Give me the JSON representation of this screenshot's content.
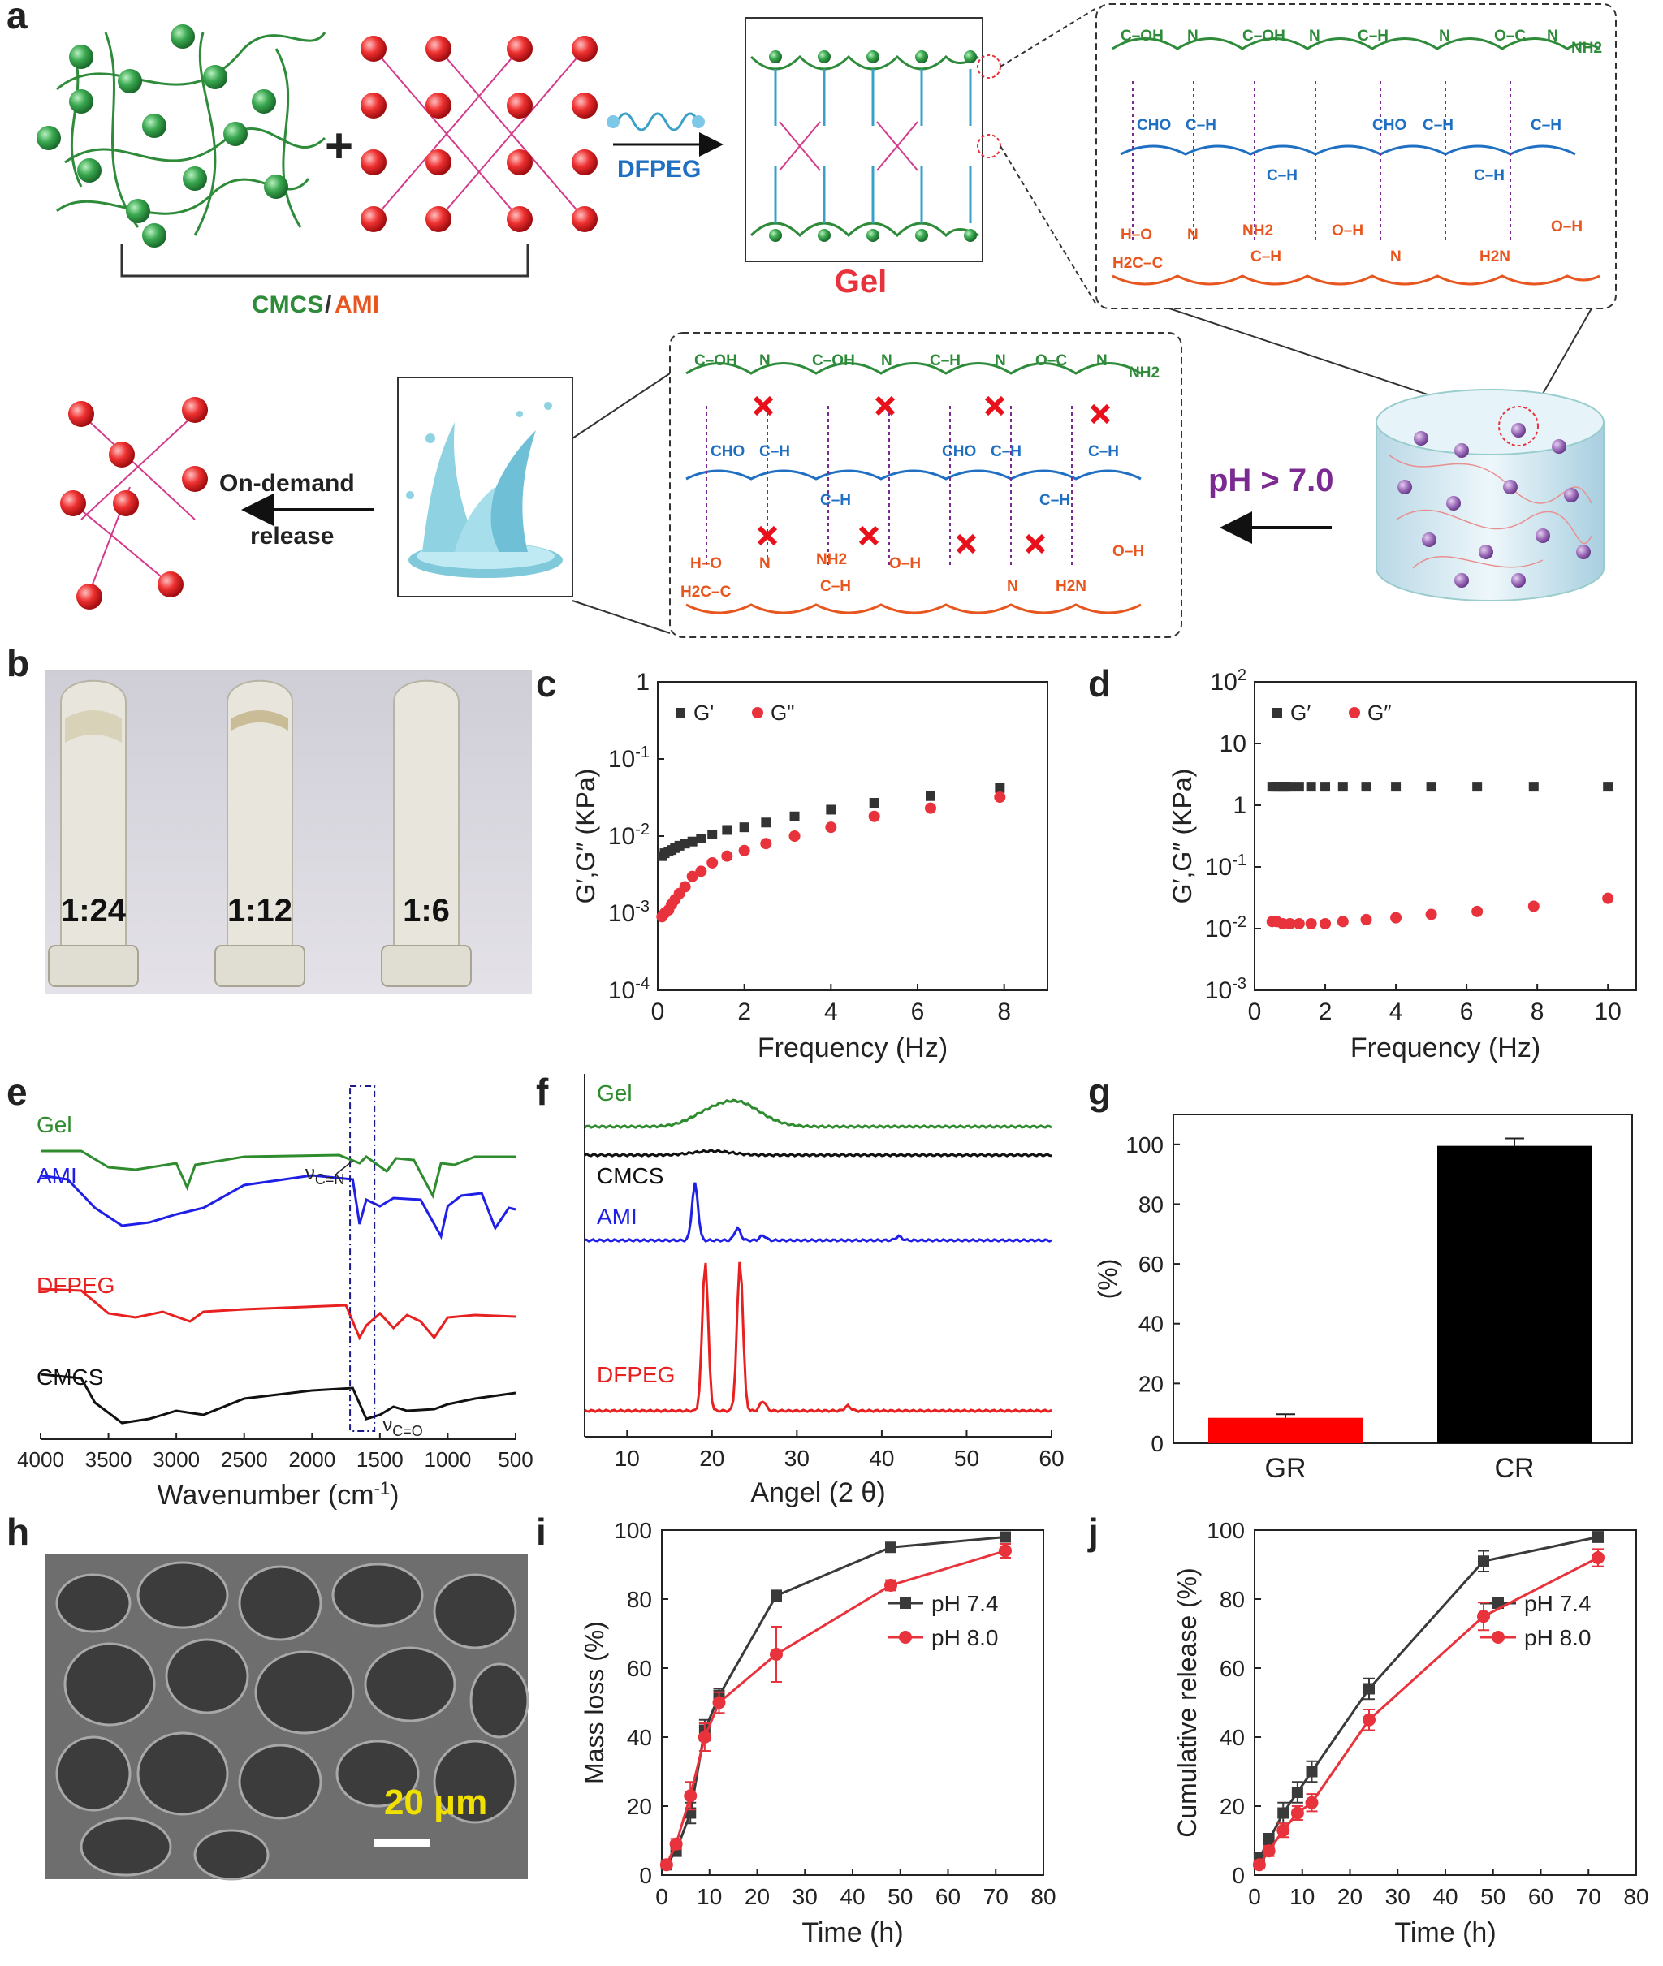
{
  "panel_letters": [
    "a",
    "b",
    "c",
    "d",
    "e",
    "f",
    "g",
    "h",
    "i",
    "j"
  ],
  "schematic": {
    "cmcs_label": "CMCS",
    "slash": "/",
    "ami_label": "AMI",
    "plus": "+",
    "crosslinker": "DFPEG",
    "gel_label": "Gel",
    "ph_trigger": "pH > 7.0",
    "release_line1": "On-demand",
    "release_line2": "release",
    "chem_top": [
      "C–OH",
      "N",
      "C–OH",
      "N",
      "C–H",
      "N",
      "O–C",
      "N",
      "NH2"
    ],
    "chem_mid": [
      "CHO",
      "C–H",
      "C–H",
      "CHO",
      "C–H",
      "C–H",
      "C–H"
    ],
    "chem_bot": [
      "H–O",
      "H2C–C",
      "N",
      "NH2",
      "C–H",
      "O–H",
      "N",
      "H2N",
      "O–H"
    ],
    "colors": {
      "green": "#2e8b3a",
      "red": "#e8323c",
      "blue": "#1f6fc2",
      "orange": "#e8561f",
      "purple": "#7a2a91"
    }
  },
  "photo_b": {
    "labels": [
      "1:24",
      "1:12",
      "1:6"
    ]
  },
  "photo_h": {
    "scalebar": "20 μm"
  },
  "chart_data": [
    {
      "id": "c",
      "type": "scatter",
      "xlabel": "Frequency (Hz)",
      "ylabel": "G′,G″ (KPa)",
      "xlim": [
        0,
        9
      ],
      "ylim_log10": [
        -4,
        0
      ],
      "xticks": [
        0,
        2,
        4,
        6,
        8
      ],
      "yticks": [
        "10-4",
        "10-3",
        "10-2",
        "10-1",
        "1"
      ],
      "series": [
        {
          "name": "G'",
          "color": "#333333",
          "marker": "square",
          "x": [
            0.1,
            0.16,
            0.25,
            0.32,
            0.4,
            0.5,
            0.63,
            0.8,
            1.0,
            1.26,
            1.6,
            2.0,
            2.5,
            3.16,
            4.0,
            5.0,
            6.3,
            7.9
          ],
          "y": [
            0.0055,
            0.006,
            0.0063,
            0.0066,
            0.007,
            0.0075,
            0.008,
            0.0085,
            0.0093,
            0.0105,
            0.012,
            0.013,
            0.015,
            0.018,
            0.022,
            0.027,
            0.033,
            0.042
          ]
        },
        {
          "name": "G\"",
          "color": "#e8323c",
          "marker": "circle",
          "x": [
            0.1,
            0.16,
            0.25,
            0.32,
            0.4,
            0.5,
            0.63,
            0.8,
            1.0,
            1.26,
            1.6,
            2.0,
            2.5,
            3.16,
            4.0,
            5.0,
            6.3,
            7.9
          ],
          "y": [
            0.0009,
            0.001,
            0.0011,
            0.0013,
            0.0015,
            0.0018,
            0.0022,
            0.003,
            0.0035,
            0.0045,
            0.0055,
            0.0065,
            0.008,
            0.01,
            0.013,
            0.018,
            0.023,
            0.032
          ]
        }
      ]
    },
    {
      "id": "d",
      "type": "scatter",
      "xlabel": "Frequency (Hz)",
      "ylabel": "G′,G″ (KPa)",
      "xlim": [
        0,
        10.8
      ],
      "ylim_log10": [
        -3,
        2
      ],
      "xticks": [
        0,
        2,
        4,
        6,
        8,
        10
      ],
      "yticks": [
        "10-3",
        "10-2",
        "10-1",
        "1",
        "10",
        "102"
      ],
      "series": [
        {
          "name": "G′",
          "color": "#333333",
          "marker": "square",
          "x": [
            0.5,
            0.6,
            0.7,
            0.8,
            0.9,
            1.0,
            1.26,
            1.6,
            2.0,
            2.5,
            3.16,
            4.0,
            5.0,
            6.3,
            7.9,
            10.0
          ],
          "y": [
            2.0,
            2.0,
            2.0,
            2.0,
            2.0,
            2.0,
            2.0,
            2.0,
            2.0,
            2.0,
            2.0,
            2.0,
            2.0,
            2.0,
            2.0,
            2.0
          ]
        },
        {
          "name": "G″",
          "color": "#e8323c",
          "marker": "circle",
          "x": [
            0.5,
            0.63,
            0.8,
            1.0,
            1.26,
            1.6,
            2.0,
            2.5,
            3.16,
            4.0,
            5.0,
            6.3,
            7.9,
            10.0
          ],
          "y": [
            0.013,
            0.013,
            0.012,
            0.012,
            0.012,
            0.012,
            0.012,
            0.013,
            0.014,
            0.015,
            0.017,
            0.019,
            0.023,
            0.031
          ]
        }
      ]
    },
    {
      "id": "e",
      "type": "line",
      "xlabel": "Wavenumber (cm-1)",
      "xticks": [
        4000,
        3500,
        3000,
        2500,
        2000,
        1500,
        1000,
        500
      ],
      "series_labels": [
        "Gel",
        "AMI",
        "DFPEG",
        "CMCS"
      ],
      "series_colors": [
        "#2e8b2e",
        "#1f1fe6",
        "#e82020",
        "#111111"
      ],
      "annotations": [
        "νC=N",
        "νC=O"
      ]
    },
    {
      "id": "f",
      "type": "line",
      "xlabel": "Angel (2 θ)",
      "xticks": [
        10,
        20,
        30,
        40,
        50,
        60
      ],
      "series_labels": [
        "Gel",
        "CMCS",
        "AMI",
        "DFPEG"
      ],
      "series_colors": [
        "#2e8b2e",
        "#111111",
        "#1f1fe6",
        "#e82020"
      ]
    },
    {
      "id": "g",
      "type": "bar",
      "ylabel": "(%)",
      "ylim": [
        0,
        110
      ],
      "yticks": [
        0,
        20,
        40,
        60,
        80,
        100
      ],
      "categories": [
        "GR",
        "CR"
      ],
      "values": [
        8.5,
        99.5
      ],
      "errors": [
        1.2,
        2.5
      ],
      "colors": [
        "#ff0000",
        "#000000"
      ]
    },
    {
      "id": "i",
      "type": "line",
      "xlabel": "Time (h)",
      "ylabel": "Mass loss (%)",
      "xlim": [
        0,
        80
      ],
      "ylim": [
        0,
        100
      ],
      "xticks": [
        0,
        10,
        20,
        30,
        40,
        50,
        60,
        70,
        80
      ],
      "yticks": [
        0,
        20,
        40,
        60,
        80,
        100
      ],
      "series": [
        {
          "name": "pH 7.4",
          "color": "#3a3a3a",
          "marker": "square",
          "x": [
            1,
            3,
            6,
            9,
            12,
            24,
            48,
            72
          ],
          "y": [
            3,
            7,
            18,
            42,
            52,
            81,
            95,
            98
          ],
          "err": [
            1,
            1.5,
            3,
            3,
            2,
            1.5,
            1,
            1
          ]
        },
        {
          "name": "pH 8.0",
          "color": "#e8323c",
          "marker": "circle",
          "x": [
            1,
            3,
            6,
            9,
            12,
            24,
            48,
            72
          ],
          "y": [
            3,
            9,
            23,
            40,
            50,
            64,
            84,
            94
          ],
          "err": [
            1,
            1.5,
            4,
            4,
            3,
            8,
            1.5,
            2
          ]
        }
      ]
    },
    {
      "id": "j",
      "type": "line",
      "xlabel": "Time (h)",
      "ylabel": "Cumulative release (%)",
      "xlim": [
        0,
        80
      ],
      "ylim": [
        0,
        100
      ],
      "xticks": [
        0,
        10,
        20,
        30,
        40,
        50,
        60,
        70,
        80
      ],
      "yticks": [
        0,
        20,
        40,
        60,
        80,
        100
      ],
      "series": [
        {
          "name": "pH 7.4",
          "color": "#3a3a3a",
          "marker": "square",
          "x": [
            1,
            3,
            6,
            9,
            12,
            24,
            48,
            72
          ],
          "y": [
            5,
            10,
            18,
            24,
            30,
            54,
            91,
            98
          ],
          "err": [
            1.5,
            2,
            3,
            3,
            3,
            3,
            3,
            1.5
          ]
        },
        {
          "name": "pH 8.0",
          "color": "#e8323c",
          "marker": "circle",
          "x": [
            1,
            3,
            6,
            9,
            12,
            24,
            48,
            72
          ],
          "y": [
            3,
            7,
            13,
            18,
            21,
            45,
            75,
            92
          ],
          "err": [
            1,
            1.5,
            2,
            2,
            2.5,
            3,
            4,
            2.5
          ]
        }
      ]
    }
  ]
}
